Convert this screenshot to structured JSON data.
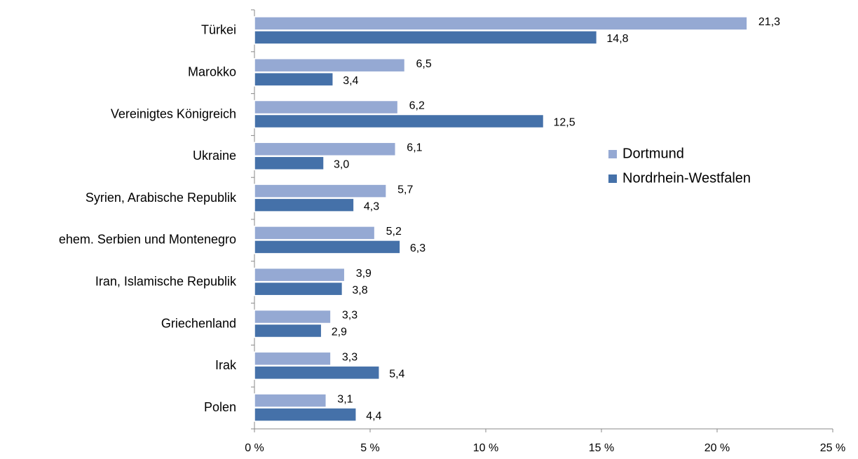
{
  "chart_data": {
    "type": "hbar",
    "categories": [
      "Türkei",
      "Marokko",
      "Vereinigtes Königreich",
      "Ukraine",
      "Syrien, Arabische Republik",
      "ehem. Serbien und Montenegro",
      "Iran, Islamische Republik",
      "Griechenland",
      "Irak",
      "Polen"
    ],
    "series": [
      {
        "name": "Dortmund",
        "color": "#95a9d3",
        "values": [
          21.3,
          6.5,
          6.2,
          6.1,
          5.7,
          5.2,
          3.9,
          3.3,
          3.3,
          3.1
        ],
        "value_labels": [
          "21,3",
          "6,5",
          "6,2",
          "6,1",
          "5,7",
          "5,2",
          "3,9",
          "3,3",
          "3,3",
          "3,1"
        ]
      },
      {
        "name": "Nordrhein-Westfalen",
        "color": "#4571a9",
        "values": [
          14.8,
          3.4,
          12.5,
          3.0,
          4.3,
          6.3,
          3.8,
          2.9,
          5.4,
          4.4
        ],
        "value_labels": [
          "14,8",
          "3,4",
          "12,5",
          "3,0",
          "4,3",
          "6,3",
          "3,8",
          "2,9",
          "5,4",
          "4,4"
        ]
      }
    ],
    "xlim": [
      0,
      25
    ],
    "xticks": [
      {
        "value": 0,
        "label": "0 %"
      },
      {
        "value": 5,
        "label": "5 %"
      },
      {
        "value": 10,
        "label": "10 %"
      },
      {
        "value": 15,
        "label": "15 %"
      },
      {
        "value": 20,
        "label": "20 %"
      },
      {
        "value": 25,
        "label": "25 %"
      }
    ],
    "grid": false,
    "legend": "right"
  }
}
